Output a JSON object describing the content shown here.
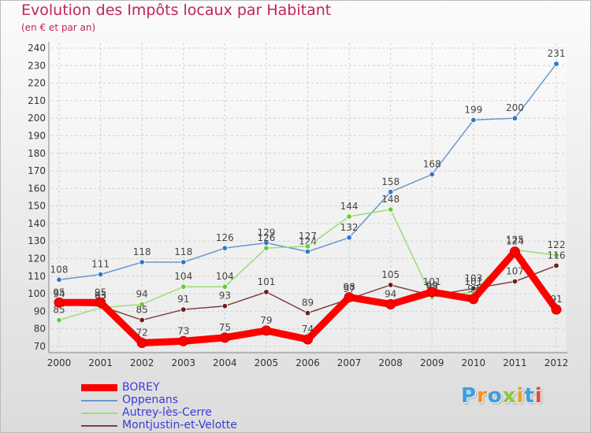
{
  "chart_data": {
    "type": "line",
    "title": "Evolution des Impôts locaux par Habitant",
    "subtitle": "(en € et par an)",
    "xlabel": "",
    "ylabel": "",
    "x": [
      "2000",
      "2001",
      "2002",
      "2003",
      "2004",
      "2005",
      "2006",
      "2007",
      "2008",
      "2009",
      "2010",
      "2011",
      "2012"
    ],
    "ylim": [
      70,
      240
    ],
    "yticks": [
      70,
      80,
      90,
      100,
      110,
      120,
      130,
      140,
      150,
      160,
      170,
      180,
      190,
      200,
      210,
      220,
      230,
      240
    ],
    "grid": true,
    "legend_position": "bottom-left",
    "series": [
      {
        "name": "BOREY",
        "color": "#ff0000",
        "style": "thick",
        "values": [
          95,
          95,
          72,
          73,
          75,
          79,
          74,
          98,
          94,
          101,
          97,
          124,
          91
        ]
      },
      {
        "name": "Oppenans",
        "color": "#6699cc",
        "marker": "#3377cc",
        "style": "thin",
        "values": [
          108,
          111,
          118,
          118,
          126,
          129,
          124,
          132,
          158,
          168,
          199,
          200,
          231
        ]
      },
      {
        "name": "Autrey-lès-Cerre",
        "color": "#99dd77",
        "marker": "#66cc33",
        "style": "thin",
        "values": [
          85,
          92,
          94,
          104,
          104,
          126,
          127,
          144,
          148,
          98,
          101,
          125,
          122
        ]
      },
      {
        "name": "Montjustin-et-Velotte",
        "color": "#804040",
        "marker": "#6b1f1f",
        "style": "thin",
        "values": [
          94,
          93,
          85,
          91,
          93,
          101,
          89,
          97,
          105,
          99,
          103,
          107,
          116
        ]
      }
    ]
  },
  "logo": {
    "text": "Proxiti",
    "colors": [
      "#3c9ee0",
      "#ff8c1a",
      "#3c9ee0",
      "#8cc63f",
      "#e8a317",
      "#3c9ee0",
      "#e04a3c"
    ]
  }
}
